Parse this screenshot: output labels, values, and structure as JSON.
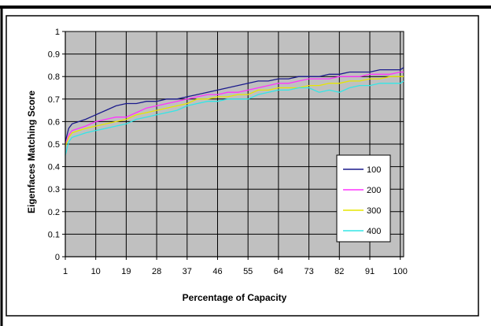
{
  "chart_data": {
    "type": "line",
    "title": "",
    "xlabel": "Percentage of Capacity",
    "ylabel": "Eigenfaces Matching Score",
    "xlim": [
      1,
      101
    ],
    "ylim": [
      0,
      1
    ],
    "x_ticks": [
      "1",
      "10",
      "19",
      "28",
      "37",
      "46",
      "55",
      "64",
      "73",
      "82",
      "91",
      "100"
    ],
    "y_ticks": [
      "0",
      "0.1",
      "0.2",
      "0.3",
      "0.4",
      "0.5",
      "0.6",
      "0.7",
      "0.8",
      "0.9",
      "1"
    ],
    "grid": true,
    "legend_position": "bottom-right",
    "x": [
      1,
      2,
      3,
      5,
      7,
      10,
      13,
      16,
      19,
      22,
      25,
      28,
      31,
      34,
      37,
      40,
      43,
      46,
      49,
      52,
      55,
      58,
      61,
      64,
      67,
      70,
      73,
      76,
      79,
      82,
      85,
      88,
      91,
      94,
      97,
      100,
      101
    ],
    "series": [
      {
        "name": "100",
        "color": "#1a1a8c",
        "values": [
          0.51,
          0.57,
          0.59,
          0.6,
          0.61,
          0.63,
          0.65,
          0.67,
          0.68,
          0.68,
          0.69,
          0.69,
          0.7,
          0.7,
          0.71,
          0.72,
          0.73,
          0.74,
          0.75,
          0.76,
          0.77,
          0.78,
          0.78,
          0.79,
          0.79,
          0.8,
          0.8,
          0.8,
          0.81,
          0.81,
          0.82,
          0.82,
          0.82,
          0.83,
          0.83,
          0.83,
          0.84
        ]
      },
      {
        "name": "200",
        "color": "#ff33ff",
        "values": [
          0.5,
          0.54,
          0.56,
          0.57,
          0.58,
          0.6,
          0.61,
          0.62,
          0.62,
          0.64,
          0.66,
          0.67,
          0.68,
          0.69,
          0.7,
          0.71,
          0.72,
          0.72,
          0.73,
          0.73,
          0.74,
          0.75,
          0.76,
          0.77,
          0.77,
          0.78,
          0.79,
          0.79,
          0.79,
          0.8,
          0.8,
          0.8,
          0.81,
          0.81,
          0.81,
          0.82,
          0.82
        ]
      },
      {
        "name": "300",
        "color": "#e6e600",
        "values": [
          0.49,
          0.53,
          0.55,
          0.56,
          0.57,
          0.58,
          0.59,
          0.6,
          0.61,
          0.63,
          0.64,
          0.65,
          0.66,
          0.67,
          0.68,
          0.7,
          0.7,
          0.71,
          0.71,
          0.72,
          0.72,
          0.74,
          0.74,
          0.75,
          0.75,
          0.75,
          0.76,
          0.76,
          0.77,
          0.77,
          0.78,
          0.78,
          0.79,
          0.79,
          0.8,
          0.8,
          0.8
        ]
      },
      {
        "name": "400",
        "color": "#33e6e6",
        "values": [
          0.45,
          0.51,
          0.53,
          0.54,
          0.55,
          0.56,
          0.57,
          0.58,
          0.59,
          0.61,
          0.62,
          0.63,
          0.64,
          0.65,
          0.67,
          0.68,
          0.69,
          0.69,
          0.7,
          0.7,
          0.7,
          0.72,
          0.73,
          0.74,
          0.74,
          0.75,
          0.75,
          0.73,
          0.74,
          0.73,
          0.75,
          0.76,
          0.76,
          0.77,
          0.77,
          0.77,
          0.78
        ]
      }
    ]
  }
}
